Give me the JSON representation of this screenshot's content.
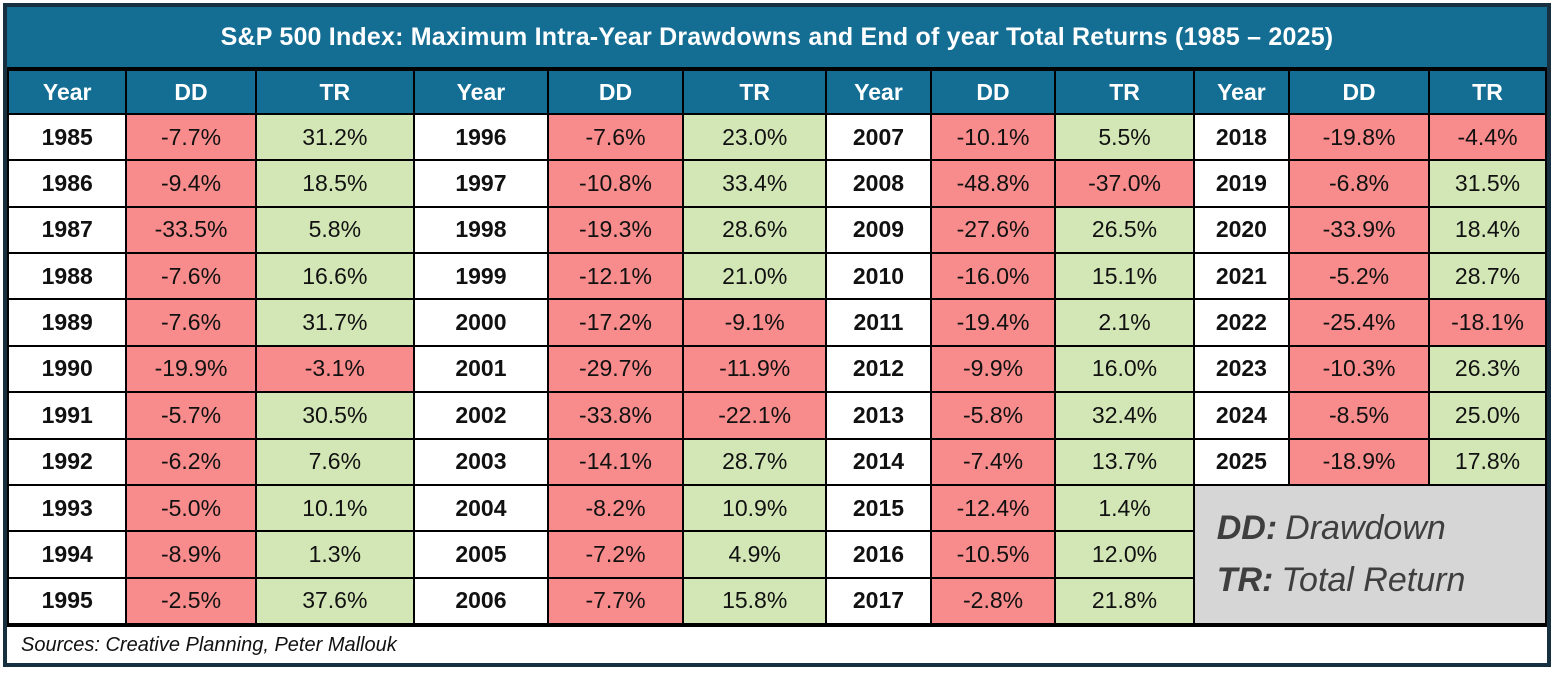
{
  "title": "S&P 500 Index: Maximum Intra-Year Drawdowns and End of year Total Returns (1985 – 2025)",
  "footer": {
    "text": "Sources: Creative Planning, Peter Mallouk"
  },
  "legend": {
    "lines": [
      {
        "abbr": "DD:",
        "label": "Drawdown"
      },
      {
        "abbr": "TR:",
        "label": "Total Return"
      }
    ]
  },
  "colors": {
    "header_bg": "#146E94",
    "header_text": "#FFFFFF",
    "negative_cell": "#F88B8B",
    "positive_cell": "#D3E7B6",
    "legend_bg": "#D6D6D6",
    "legend_text": "#3F3F3F",
    "outer_border": "#173040",
    "grid_line": "#000000"
  },
  "chart_data": {
    "type": "table",
    "title": "S&P 500 Index: Maximum Intra-Year Drawdowns and End of year Total Returns (1985 – 2025)",
    "column_headers": [
      "Year",
      "DD",
      "TR",
      "Year",
      "DD",
      "TR",
      "Year",
      "DD",
      "TR",
      "Year",
      "DD",
      "TR"
    ],
    "rows_per_column_group": 11,
    "records": [
      {
        "year": "1985",
        "dd": "-7.7%",
        "tr": "31.2%"
      },
      {
        "year": "1986",
        "dd": "-9.4%",
        "tr": "18.5%"
      },
      {
        "year": "1987",
        "dd": "-33.5%",
        "tr": "5.8%"
      },
      {
        "year": "1988",
        "dd": "-7.6%",
        "tr": "16.6%"
      },
      {
        "year": "1989",
        "dd": "-7.6%",
        "tr": "31.7%"
      },
      {
        "year": "1990",
        "dd": "-19.9%",
        "tr": "-3.1%"
      },
      {
        "year": "1991",
        "dd": "-5.7%",
        "tr": "30.5%"
      },
      {
        "year": "1992",
        "dd": "-6.2%",
        "tr": "7.6%"
      },
      {
        "year": "1993",
        "dd": "-5.0%",
        "tr": "10.1%"
      },
      {
        "year": "1994",
        "dd": "-8.9%",
        "tr": "1.3%"
      },
      {
        "year": "1995",
        "dd": "-2.5%",
        "tr": "37.6%"
      },
      {
        "year": "1996",
        "dd": "-7.6%",
        "tr": "23.0%"
      },
      {
        "year": "1997",
        "dd": "-10.8%",
        "tr": "33.4%"
      },
      {
        "year": "1998",
        "dd": "-19.3%",
        "tr": "28.6%"
      },
      {
        "year": "1999",
        "dd": "-12.1%",
        "tr": "21.0%"
      },
      {
        "year": "2000",
        "dd": "-17.2%",
        "tr": "-9.1%"
      },
      {
        "year": "2001",
        "dd": "-29.7%",
        "tr": "-11.9%"
      },
      {
        "year": "2002",
        "dd": "-33.8%",
        "tr": "-22.1%"
      },
      {
        "year": "2003",
        "dd": "-14.1%",
        "tr": "28.7%"
      },
      {
        "year": "2004",
        "dd": "-8.2%",
        "tr": "10.9%"
      },
      {
        "year": "2005",
        "dd": "-7.2%",
        "tr": "4.9%"
      },
      {
        "year": "2006",
        "dd": "-7.7%",
        "tr": "15.8%"
      },
      {
        "year": "2007",
        "dd": "-10.1%",
        "tr": "5.5%"
      },
      {
        "year": "2008",
        "dd": "-48.8%",
        "tr": "-37.0%"
      },
      {
        "year": "2009",
        "dd": "-27.6%",
        "tr": "26.5%"
      },
      {
        "year": "2010",
        "dd": "-16.0%",
        "tr": "15.1%"
      },
      {
        "year": "2011",
        "dd": "-19.4%",
        "tr": "2.1%"
      },
      {
        "year": "2012",
        "dd": "-9.9%",
        "tr": "16.0%"
      },
      {
        "year": "2013",
        "dd": "-5.8%",
        "tr": "32.4%"
      },
      {
        "year": "2014",
        "dd": "-7.4%",
        "tr": "13.7%"
      },
      {
        "year": "2015",
        "dd": "-12.4%",
        "tr": "1.4%"
      },
      {
        "year": "2016",
        "dd": "-10.5%",
        "tr": "12.0%"
      },
      {
        "year": "2017",
        "dd": "-2.8%",
        "tr": "21.8%"
      },
      {
        "year": "2018",
        "dd": "-19.8%",
        "tr": "-4.4%"
      },
      {
        "year": "2019",
        "dd": "-6.8%",
        "tr": "31.5%"
      },
      {
        "year": "2020",
        "dd": "-33.9%",
        "tr": "18.4%"
      },
      {
        "year": "2021",
        "dd": "-5.2%",
        "tr": "28.7%"
      },
      {
        "year": "2022",
        "dd": "-25.4%",
        "tr": "-18.1%"
      },
      {
        "year": "2023",
        "dd": "-10.3%",
        "tr": "26.3%"
      },
      {
        "year": "2024",
        "dd": "-8.5%",
        "tr": "25.0%"
      },
      {
        "year": "2025",
        "dd": "-18.9%",
        "tr": "17.8%"
      }
    ]
  }
}
